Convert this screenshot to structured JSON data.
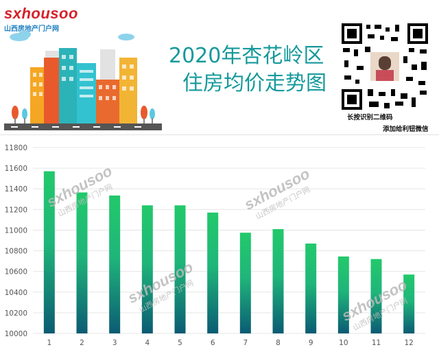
{
  "brand": {
    "logo_text": "sxhousoo",
    "logo_subtitle": "山西房地产门户网"
  },
  "header": {
    "title_line1": "2020年杏花岭区",
    "title_line2": "住房均价走势图"
  },
  "qr": {
    "label_scan": "长按识别二维码",
    "label_add": "添加给利钮微信"
  },
  "watermark": {
    "text": "sxhousoo",
    "subtitle": "山西房地产门户网"
  },
  "colors": {
    "title": "#15999b",
    "bar_top": "#22c96b",
    "bar_bottom": "#0b5b73",
    "grid": "#e6e6e6",
    "logo_red": "#d6202a",
    "logo_blue": "#1d7fc0"
  },
  "chart_data": {
    "type": "bar",
    "categories": [
      "1",
      "2",
      "3",
      "4",
      "5",
      "6",
      "7",
      "8",
      "9",
      "10",
      "11",
      "12"
    ],
    "values": [
      11570,
      11365,
      11335,
      11240,
      11240,
      11170,
      10975,
      11010,
      10870,
      10745,
      10720,
      10570
    ],
    "ylim": [
      10000,
      11800
    ],
    "yticks": [
      "10000",
      "10200",
      "10400",
      "10600",
      "10800",
      "11000",
      "11200",
      "11400",
      "11600",
      "11800"
    ],
    "grid": true,
    "title": "",
    "xlabel": "",
    "ylabel": ""
  }
}
